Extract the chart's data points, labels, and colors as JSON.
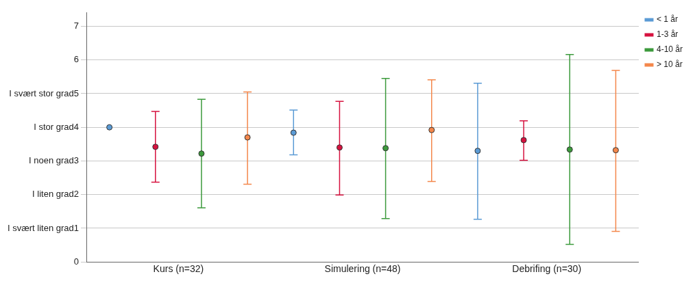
{
  "chart_data": {
    "type": "scatter",
    "categories": [
      "Kurs (n=32)",
      "Simulering (n=48)",
      "Debrifing (n=30)"
    ],
    "series": [
      {
        "name": "< 1 år",
        "color": "#5b9bd5",
        "values": [
          4.0,
          3.84,
          3.3
        ],
        "errors": [
          null,
          [
            3.18,
            4.51
          ],
          [
            1.27,
            5.31
          ]
        ]
      },
      {
        "name": "1-3 år",
        "color": "#d6123f",
        "values": [
          3.42,
          3.4,
          3.62
        ],
        "errors": [
          [
            2.37,
            4.47
          ],
          [
            1.99,
            4.77
          ],
          [
            3.02,
            4.19
          ]
        ]
      },
      {
        "name": "4-10 år",
        "color": "#3c9a3c",
        "values": [
          3.22,
          3.38,
          3.34
        ],
        "errors": [
          [
            1.61,
            4.83
          ],
          [
            1.29,
            5.45
          ],
          [
            0.52,
            6.16
          ]
        ]
      },
      {
        "name": "> 10 år",
        "color": "#f4874b",
        "values": [
          3.7,
          3.92,
          3.32
        ],
        "errors": [
          [
            2.31,
            5.05
          ],
          [
            2.39,
            5.41
          ],
          [
            0.91,
            5.69
          ]
        ]
      }
    ],
    "ylim": [
      0,
      7.4
    ],
    "yticks": [
      0,
      {
        "value": 1,
        "label": "I svært liten grad1"
      },
      {
        "value": 2,
        "label": "I liten grad2"
      },
      {
        "value": 3,
        "label": "I noen grad3"
      },
      {
        "value": 4,
        "label": "I stor grad4"
      },
      {
        "value": 5,
        "label": "I svært stor grad5"
      },
      6,
      7
    ],
    "grid": "y",
    "legend": "top right",
    "marker": "circle"
  }
}
